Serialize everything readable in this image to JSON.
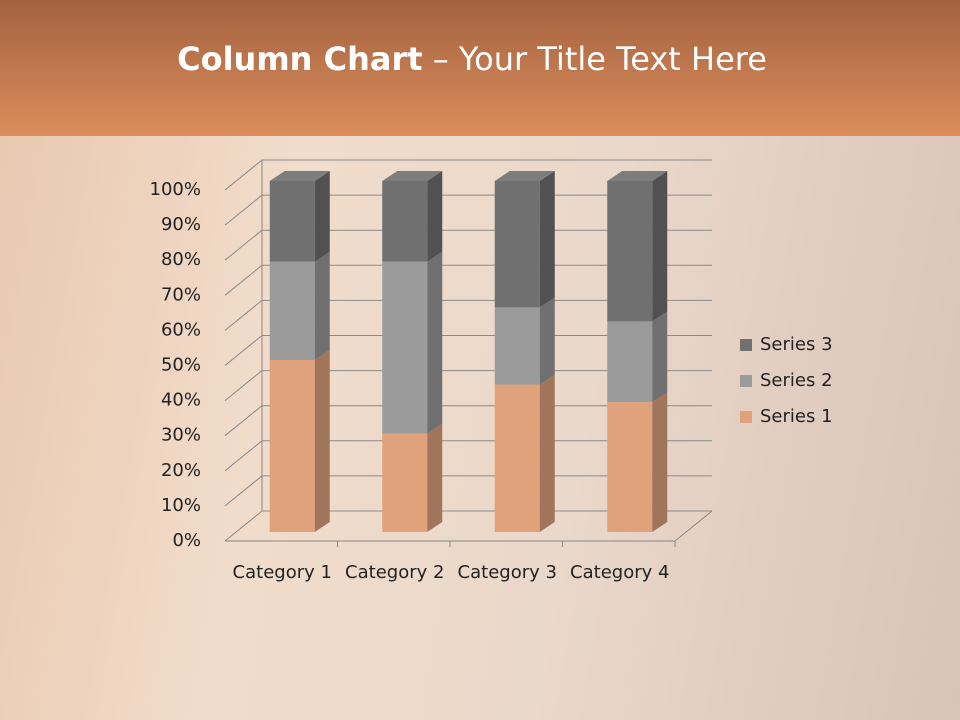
{
  "chart_data": {
    "type": "bar3d_stacked100",
    "title": [
      "Column Chart",
      "– Your Title Text Here"
    ],
    "categories": [
      "Category 1",
      "Category 2",
      "Category 3",
      "Category 4"
    ],
    "series": [
      {
        "name": "Series 1",
        "color": "#e0a27c",
        "values": [
          49,
          28,
          42,
          37
        ]
      },
      {
        "name": "Series 2",
        "color": "#9b9b9b",
        "values": [
          28,
          49,
          22,
          23
        ]
      },
      {
        "name": "Series 3",
        "color": "#707070",
        "values": [
          23,
          23,
          36,
          40
        ]
      }
    ],
    "ylim": [
      0,
      100
    ],
    "yticks": [
      {
        "value": 0,
        "label": "0%"
      },
      {
        "value": 10,
        "label": "10%"
      },
      {
        "value": 20,
        "label": "20%"
      },
      {
        "value": 30,
        "label": "30%"
      },
      {
        "value": 40,
        "label": "40%"
      },
      {
        "value": 50,
        "label": "50%"
      },
      {
        "value": 60,
        "label": "60%"
      },
      {
        "value": 70,
        "label": "70%"
      },
      {
        "value": 80,
        "label": "80%"
      },
      {
        "value": 90,
        "label": "90%"
      },
      {
        "value": 100,
        "label": "100%"
      }
    ],
    "grid": true
  }
}
